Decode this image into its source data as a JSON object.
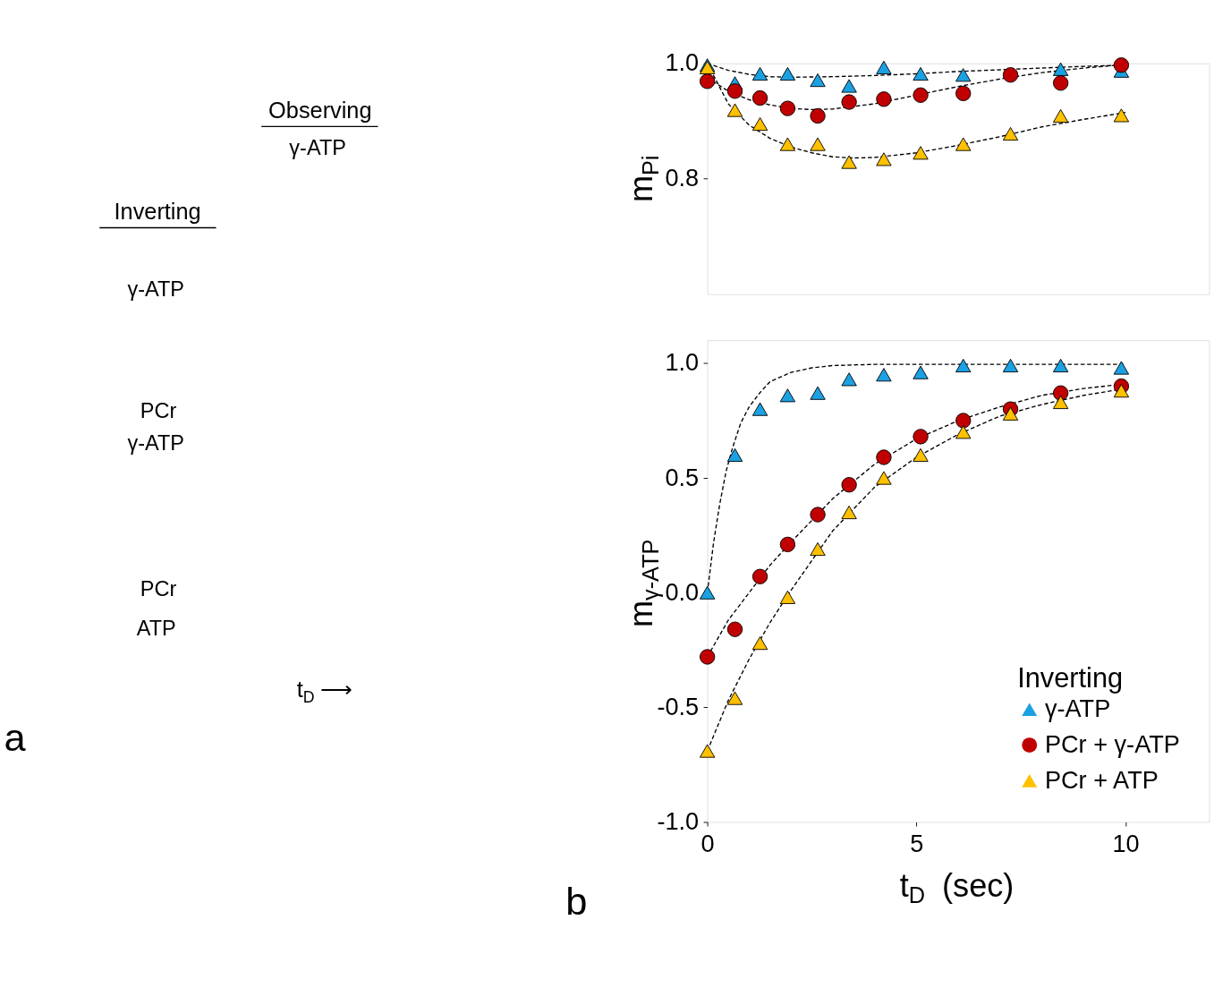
{
  "chart_data": [
    {
      "type": "other",
      "annotations": [
        "Observing",
        "γ-ATP",
        "Inverting",
        "γ-ATP",
        "PCr",
        "γ-ATP",
        "PCr",
        "ATP",
        "t$_{D}$ ⟶",
        "a"
      ]
    },
    {
      "type": "scatter",
      "ylabel": "m$_{Pi}$",
      "xlim": [
        0,
        12
      ],
      "ylim": [
        0.6,
        1.0
      ],
      "xticks": [
        0,
        5,
        10
      ],
      "yticks": [
        0.8,
        {
          "value": 1.0,
          "label": "1.0"
        }
      ],
      "tick_labels": "y",
      "grid": false,
      "legend": false,
      "series": [
        {
          "type": "line",
          "color": "#000000",
          "line_style": "dashed",
          "marker": "none",
          "x": [
            0,
            0.5,
            1,
            1.5,
            2,
            3,
            4,
            5,
            6,
            7,
            8,
            9,
            10
          ],
          "values": [
            1.0,
            0.988,
            0.981,
            0.977,
            0.976,
            0.977,
            0.979,
            0.982,
            0.986,
            0.989,
            0.992,
            0.995,
            0.997
          ]
        },
        {
          "type": "line",
          "color": "#000000",
          "line_style": "dashed",
          "marker": "none",
          "x": [
            0,
            0.5,
            1,
            1.5,
            2,
            2.5,
            3,
            4,
            5,
            6,
            7,
            8,
            9,
            10
          ],
          "values": [
            0.975,
            0.952,
            0.937,
            0.928,
            0.922,
            0.92,
            0.921,
            0.93,
            0.945,
            0.96,
            0.973,
            0.984,
            0.992,
            0.998
          ]
        },
        {
          "type": "line",
          "color": "#000000",
          "line_style": "dashed",
          "marker": "none",
          "x": [
            0,
            0.5,
            1,
            1.5,
            2,
            2.5,
            3,
            3.5,
            4,
            5,
            6,
            7,
            8,
            9,
            10
          ],
          "values": [
            1.0,
            0.93,
            0.893,
            0.87,
            0.855,
            0.845,
            0.838,
            0.836,
            0.837,
            0.845,
            0.858,
            0.873,
            0.89,
            0.903,
            0.915
          ]
        },
        {
          "type": "scatter",
          "color": "#1ba1e2",
          "marker": "triangle",
          "x": [
            0,
            0.66,
            1.26,
            1.92,
            2.64,
            3.39,
            4.22,
            5.1,
            6.12,
            8.45,
            9.9
          ],
          "values": [
            0.997,
            0.966,
            0.982,
            0.982,
            0.971,
            0.961,
            0.993,
            0.982,
            0.98,
            0.99,
            0.987
          ]
        },
        {
          "type": "scatter",
          "color": "#c00000",
          "marker": "circle",
          "x": [
            0,
            0.66,
            1.26,
            1.92,
            2.64,
            3.39,
            4.22,
            5.1,
            6.12,
            7.25,
            8.45,
            9.9
          ],
          "values": [
            0.969,
            0.952,
            0.94,
            0.922,
            0.909,
            0.933,
            0.938,
            0.945,
            0.948,
            0.98,
            0.966,
            0.997
          ]
        },
        {
          "type": "scatter",
          "color": "#ffc000",
          "marker": "triangle",
          "x": [
            0,
            0.66,
            1.26,
            1.92,
            2.64,
            3.39,
            4.22,
            5.1,
            6.12,
            7.25,
            8.45,
            9.9
          ],
          "values": [
            0.993,
            0.919,
            0.895,
            0.86,
            0.86,
            0.829,
            0.834,
            0.845,
            0.86,
            0.878,
            0.909,
            0.91
          ]
        }
      ]
    },
    {
      "type": "scatter",
      "ylabel": "m$_{γ-ATP}$",
      "xlabel": "t$_{D}$  (sec)",
      "legend_title": "Inverting",
      "legend": "bottom right",
      "xlim": [
        0,
        12
      ],
      "ylim": [
        -1.0,
        1.1
      ],
      "xticks": [
        0,
        5,
        10
      ],
      "yticks": [
        {
          "value": -1.0,
          "label": "-1.0"
        },
        -0.5,
        {
          "value": 0.0,
          "label": "0.0"
        },
        0.5,
        {
          "value": 1.0,
          "label": "1.0"
        }
      ],
      "grid": false,
      "annotations": [
        "b"
      ],
      "series": [
        {
          "type": "line",
          "color": "#000000",
          "line_style": "dashed",
          "marker": "none",
          "x": [
            0,
            0.15,
            0.3,
            0.45,
            0.6,
            0.8,
            1,
            1.25,
            1.5,
            2,
            2.5,
            3,
            4,
            5,
            6,
            8,
            10
          ],
          "values": [
            0.0,
            0.22,
            0.39,
            0.53,
            0.63,
            0.74,
            0.81,
            0.87,
            0.92,
            0.96,
            0.98,
            0.99,
            0.995,
            0.995,
            0.995,
            0.995,
            0.995
          ]
        },
        {
          "type": "line",
          "color": "#000000",
          "line_style": "dashed",
          "marker": "none",
          "x": [
            0,
            0.5,
            1,
            1.5,
            2,
            3,
            4,
            5,
            6,
            7,
            8,
            9,
            10
          ],
          "values": [
            -0.28,
            -0.12,
            0.0,
            0.12,
            0.22,
            0.41,
            0.56,
            0.67,
            0.75,
            0.81,
            0.86,
            0.89,
            0.91
          ]
        },
        {
          "type": "line",
          "color": "#000000",
          "line_style": "dashed",
          "marker": "none",
          "x": [
            0,
            0.5,
            1,
            1.5,
            2,
            3,
            4,
            5,
            6,
            7,
            8,
            9,
            10
          ],
          "values": [
            -0.69,
            -0.47,
            -0.29,
            -0.13,
            0.01,
            0.27,
            0.46,
            0.59,
            0.69,
            0.77,
            0.82,
            0.86,
            0.89
          ]
        },
        {
          "type": "scatter",
          "name": "γ-ATP",
          "color": "#1ba1e2",
          "marker": "triangle",
          "x": [
            0,
            0.66,
            1.26,
            1.92,
            2.64,
            3.39,
            4.22,
            5.1,
            6.12,
            7.25,
            8.45,
            9.9
          ],
          "values": [
            0.0,
            0.6,
            0.8,
            0.86,
            0.87,
            0.93,
            0.95,
            0.96,
            0.99,
            0.99,
            0.99,
            0.98
          ]
        },
        {
          "type": "scatter",
          "name": "PCr + γ-ATP",
          "color": "#c00000",
          "marker": "circle",
          "x": [
            0,
            0.66,
            1.26,
            1.92,
            2.64,
            3.39,
            4.22,
            5.1,
            6.12,
            7.25,
            8.45,
            9.9
          ],
          "values": [
            -0.28,
            -0.16,
            0.07,
            0.21,
            0.34,
            0.47,
            0.59,
            0.68,
            0.75,
            0.8,
            0.87,
            0.9
          ]
        },
        {
          "type": "scatter",
          "name": "PCr + ATP",
          "color": "#ffc000",
          "marker": "triangle",
          "x": [
            0,
            0.66,
            1.26,
            1.92,
            2.64,
            3.39,
            4.22,
            5.1,
            6.12,
            7.25,
            8.45,
            9.9
          ],
          "values": [
            -0.69,
            -0.46,
            -0.22,
            -0.02,
            0.19,
            0.35,
            0.5,
            0.6,
            0.7,
            0.78,
            0.83,
            0.88
          ]
        }
      ]
    }
  ]
}
